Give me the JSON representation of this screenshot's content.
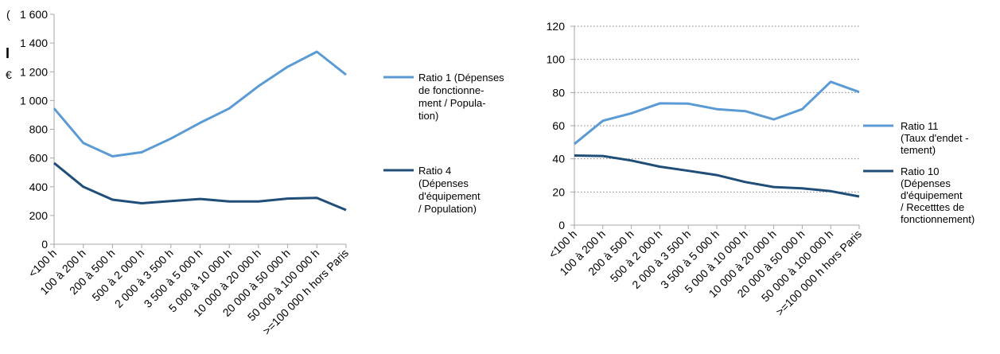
{
  "charts": [
    {
      "chart_data": {
        "type": "line",
        "categories": [
          "<100 h",
          "100 à 200 h",
          "200 à 500 h",
          "500 à 2 000 h",
          "2 000 à 3 500 h",
          "3 500 à 5 000 h",
          "5 000 à 10 000 h",
          "10 000 à 20 000 h",
          "20 000 à 50 000 h",
          "50 000 à 100 000 h",
          ">=100 000 h hors Paris"
        ],
        "series": [
          {
            "name": "Ratio 1 (Dépenses de fonctionnement / Population)",
            "legend_lines": [
              "Ratio 1 (Dépenses",
              "de fonctionne-",
              "ment / Popula-",
              "tion)"
            ],
            "color": "#5b9bd5",
            "values": [
              945,
              705,
              612,
              640,
              735,
              845,
              945,
              1100,
              1235,
              1340,
              1180
            ]
          },
          {
            "name": "Ratio 4 (Dépenses d'équipement / Population)",
            "legend_lines": [
              "Ratio 4",
              "(Dépenses",
              "d'équipement",
              "/ Population)"
            ],
            "color": "#1f4e79",
            "values": [
              565,
              400,
              310,
              285,
              300,
              315,
              298,
              298,
              318,
              322,
              238
            ]
          }
        ],
        "y_ticks": [
          "0",
          "200",
          "400",
          "600",
          "800",
          "1 000",
          "1 200",
          "1 400",
          "1 600"
        ],
        "ylim": [
          0,
          1600
        ],
        "grid": false,
        "legend": "right"
      }
    },
    {
      "chart_data": {
        "type": "line",
        "categories": [
          "<100 h",
          "100 à 200 h",
          "200 à 500 h",
          "500 à 2 000 h",
          "2 000 à 3 500 h",
          "3 500 à 5 000 h",
          "5 000 à 10 000 h",
          "10 000 à 20 000 h",
          "20 000 à 50 000 h",
          "50 000 à 100 000 h",
          ">=100 000 h hors Paris"
        ],
        "series": [
          {
            "name": "Ratio 11 (Taux d'endet - tement)",
            "legend_lines": [
              "Ratio 11",
              "(Taux d'endet -",
              "tement)"
            ],
            "color": "#5b9bd5",
            "values": [
              49,
              63,
              67.5,
              73.5,
              73.3,
              70,
              68.8,
              63.8,
              70,
              86.5,
              80.3
            ]
          },
          {
            "name": "Ratio 10 (Dépenses d'équipement / Recetttes de fonctionnement)",
            "legend_lines": [
              "Ratio 10",
              "(Dépenses",
              "d'équipement",
              "/ Recetttes de",
              "fonctionnement)"
            ],
            "color": "#1f4e79",
            "values": [
              42,
              41.7,
              39,
              35.3,
              32.8,
              30.2,
              26,
              23,
              22.2,
              20.5,
              17.3
            ]
          }
        ],
        "y_ticks": [
          "0",
          "20",
          "40",
          "60",
          "80",
          "100",
          "120"
        ],
        "ylim": [
          0,
          120
        ],
        "grid": "dotted-horizontal",
        "legend": "right"
      }
    }
  ],
  "left_clipped_text": [
    "(",
    "I",
    "€"
  ]
}
